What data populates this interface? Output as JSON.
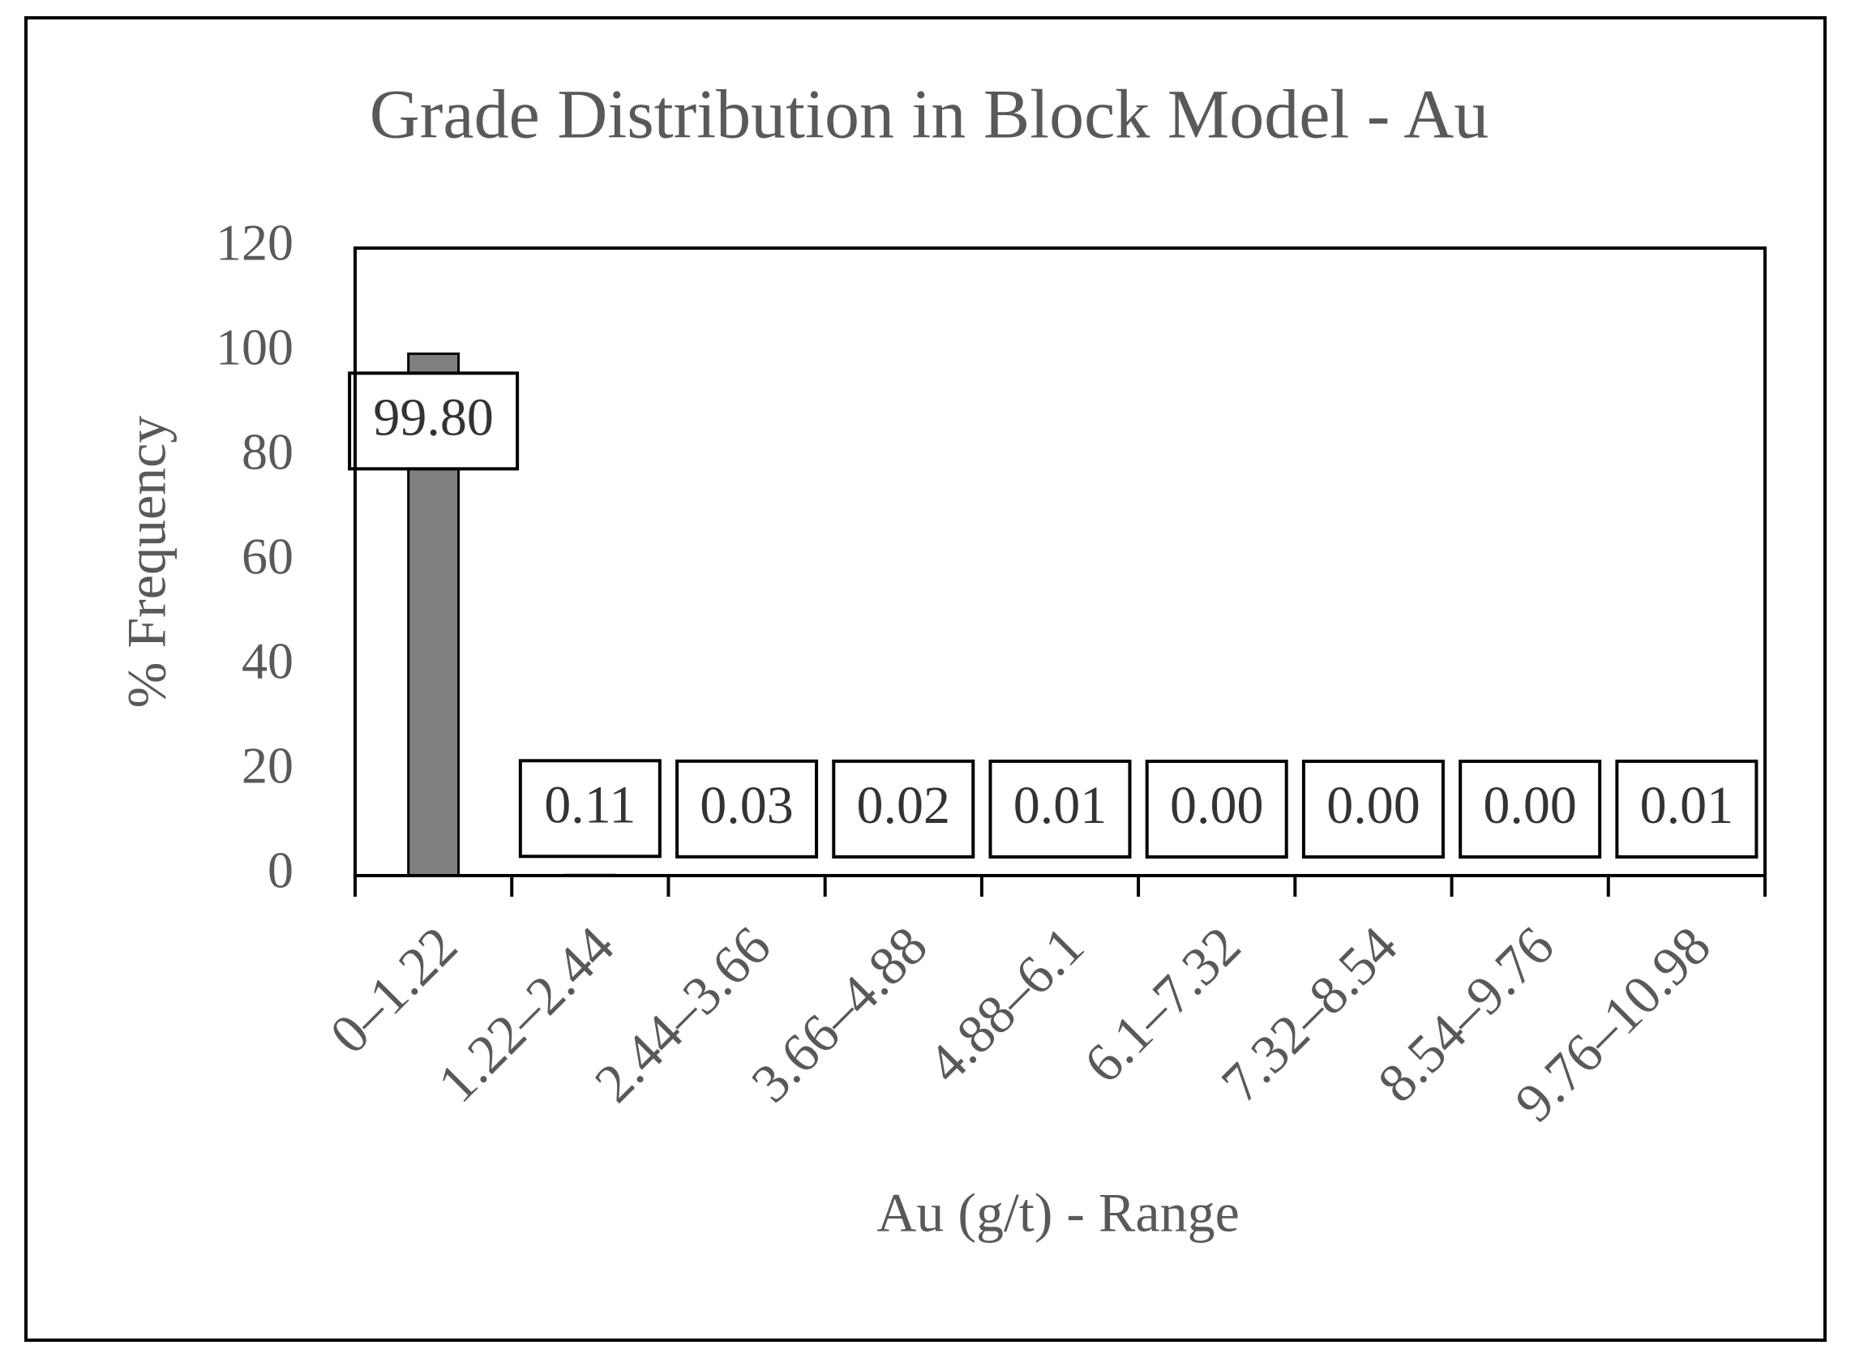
{
  "chart_data": {
    "type": "bar",
    "title": "Grade Distribution in Block Model - Au",
    "x_label": "Au (g/t) - Range",
    "y_label": "% Frequency",
    "categories": [
      "0–1.22",
      "1.22–2.44",
      "2.44–3.66",
      "3.66–4.88",
      "4.88–6.1",
      "6.1–7.32",
      "7.32–8.54",
      "8.54–9.76",
      "9.76–10.98"
    ],
    "values": [
      99.8,
      0.11,
      0.03,
      0.02,
      0.01,
      0,
      0,
      0,
      0.01
    ],
    "value_labels": [
      "99.80",
      "0.11",
      "0.03",
      "0.02",
      "0.01",
      "0.00",
      "0.00",
      "0.00",
      "0.01"
    ],
    "color": "#808080",
    "ylim": [
      0,
      120
    ],
    "yticks": [
      0,
      20,
      40,
      60,
      80,
      100,
      120
    ],
    "grid": false
  }
}
